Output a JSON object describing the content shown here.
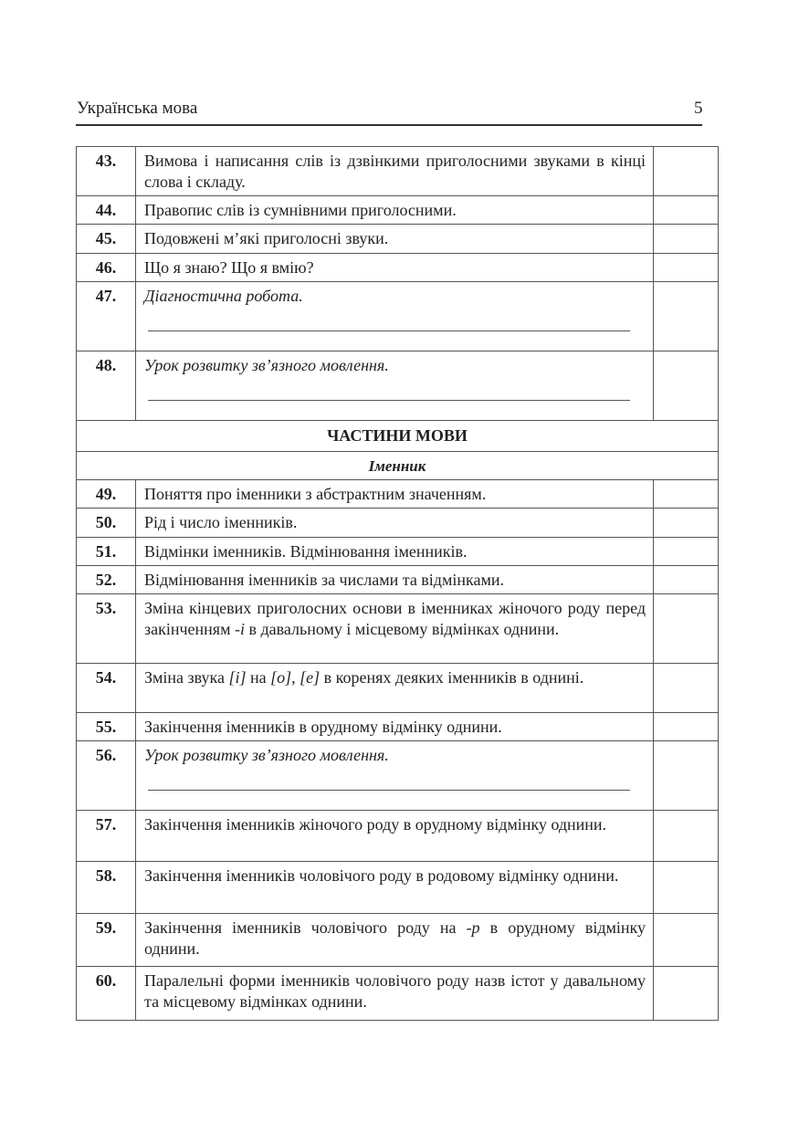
{
  "header": {
    "title": "Українська мова",
    "page_number": "5"
  },
  "rows": [
    {
      "type": "item",
      "num": "43.",
      "parts": [
        {
          "t": "Вимова і написання слів із дзвінкими приголосними звуками в кінці слова і складу."
        }
      ],
      "h": 54
    },
    {
      "type": "item",
      "num": "44.",
      "parts": [
        {
          "t": "Правопис слів із сумнівними приголосними."
        }
      ],
      "h": 31
    },
    {
      "type": "item",
      "num": "45.",
      "parts": [
        {
          "t": "Подовжені м’які приголосні звуки."
        }
      ],
      "h": 32
    },
    {
      "type": "item",
      "num": "46.",
      "parts": [
        {
          "t": "Що я знаю? Що я вмію?"
        }
      ],
      "h": 31
    },
    {
      "type": "item",
      "num": "47.",
      "parts": [
        {
          "t": "Діагностична робота.",
          "i": true
        }
      ],
      "line": true,
      "h": 76
    },
    {
      "type": "item",
      "num": "48.",
      "parts": [
        {
          "t": "Урок розвитку зв’язного мовлення.",
          "i": true
        }
      ],
      "line": true,
      "h": 76
    },
    {
      "type": "section",
      "title": "ЧАСТИНИ МОВИ",
      "h": 34
    },
    {
      "type": "sub",
      "title": "Іменник",
      "h": 31
    },
    {
      "type": "item",
      "num": "49.",
      "parts": [
        {
          "t": "Поняття про іменники з абстрактним значенням."
        }
      ],
      "h": 31
    },
    {
      "type": "item",
      "num": "50.",
      "parts": [
        {
          "t": "Рід і число іменників."
        }
      ],
      "h": 32
    },
    {
      "type": "item",
      "num": "51.",
      "parts": [
        {
          "t": "Відмінки іменників. Відмінювання іменників."
        }
      ],
      "h": 31
    },
    {
      "type": "item",
      "num": "52.",
      "parts": [
        {
          "t": "Відмінювання іменників за числами та відмінками."
        }
      ],
      "h": 31
    },
    {
      "type": "item",
      "num": "53.",
      "parts": [
        {
          "t": "Зміна кінцевих приголосних основи в іменниках жіночого роду перед закінченням "
        },
        {
          "t": "-і",
          "i": true
        },
        {
          "t": " в давальному і місцевому відмінках однини."
        }
      ],
      "h": 76
    },
    {
      "type": "item",
      "num": "54.",
      "parts": [
        {
          "t": "Зміна звука "
        },
        {
          "t": "[і]",
          "i": true
        },
        {
          "t": " на "
        },
        {
          "t": "[о]",
          "i": true
        },
        {
          "t": ", "
        },
        {
          "t": "[е]",
          "i": true
        },
        {
          "t": " в коренях деяких іменників в однині."
        }
      ],
      "h": 54
    },
    {
      "type": "item",
      "num": "55.",
      "parts": [
        {
          "t": "Закінчення іменників в орудному відмінку однини."
        }
      ],
      "h": 31
    },
    {
      "type": "item",
      "num": "56.",
      "parts": [
        {
          "t": "Урок розвитку зв’язного мовлення.",
          "i": true
        }
      ],
      "line": true,
      "h": 76
    },
    {
      "type": "item",
      "num": "57.",
      "parts": [
        {
          "t": "Закінчення іменників жіночого роду в орудному відмінку однини."
        }
      ],
      "h": 56
    },
    {
      "type": "item",
      "num": "58.",
      "parts": [
        {
          "t": "Закінчення іменників чоловічого роду в родовому відмінку однини."
        }
      ],
      "h": 57
    },
    {
      "type": "item",
      "num": "59.",
      "parts": [
        {
          "t": "Закінчення іменників чоловічого роду на "
        },
        {
          "t": "-р",
          "i": true
        },
        {
          "t": " в орудному відмінку однини."
        }
      ],
      "h": 58
    },
    {
      "type": "item",
      "num": "60.",
      "parts": [
        {
          "t": "Паралельні форми іменників чоловічого роду назв істот у давальному та місцевому відмінках однини."
        }
      ],
      "h": 59
    }
  ]
}
